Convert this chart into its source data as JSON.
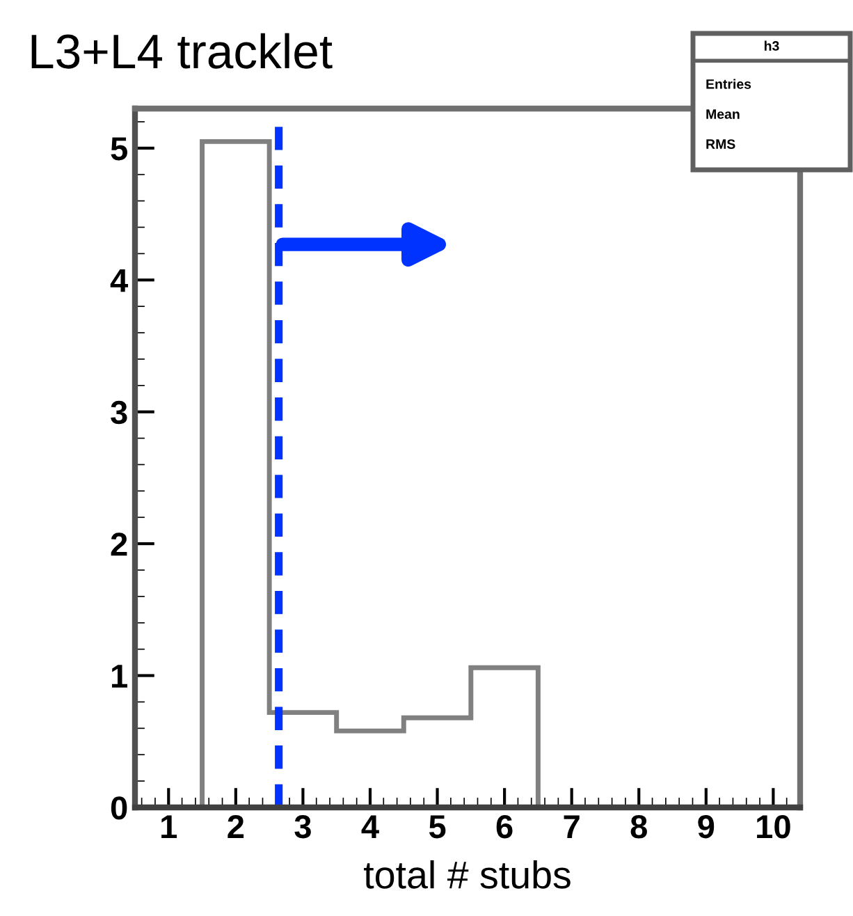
{
  "chart_data": {
    "type": "histogram",
    "title": "L3+L4 tracklet",
    "xlabel": "total # stubs",
    "bins": [
      1.5,
      2.5,
      3.5,
      4.5,
      5.5,
      6.5
    ],
    "values": [
      5.05,
      0.72,
      0.58,
      0.68,
      1.06
    ],
    "color": "#808080",
    "xlim": [
      0.5,
      10.4
    ],
    "ylim": [
      0,
      5.3
    ],
    "xticks": [
      1,
      2,
      3,
      4,
      5,
      6,
      7,
      8,
      9,
      10
    ],
    "yticks": [
      0,
      1,
      2,
      3,
      4,
      5
    ],
    "grid": false,
    "legend": false,
    "ref_lines": [
      {
        "axis": "x",
        "value": 2.64,
        "color": "#0033ff",
        "line_style": "dashed"
      }
    ],
    "annotations": [
      "h3",
      "Entries",
      "Mean",
      "RMS"
    ]
  }
}
